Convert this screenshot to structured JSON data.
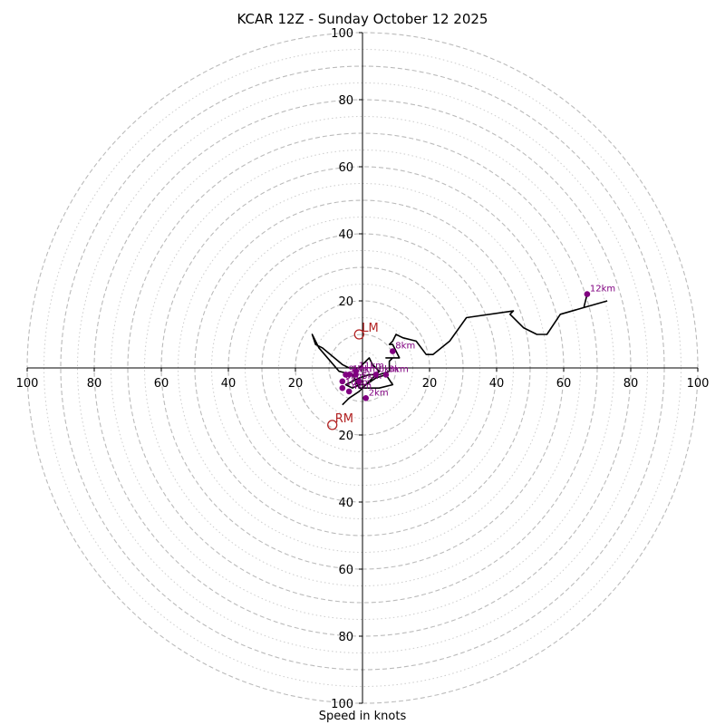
{
  "chart_data": {
    "type": "hodograph",
    "title": "KCAR 12Z - Sunday October 12 2025",
    "xlabel": "Speed in knots",
    "range": [
      -100,
      100
    ],
    "rings_major": [
      10,
      20,
      30,
      40,
      50,
      60,
      70,
      80,
      90,
      100
    ],
    "rings_minor": [
      5,
      15,
      25,
      35,
      45,
      55,
      65,
      75,
      85,
      95
    ],
    "x_tick_labels": [
      "100",
      "80",
      "60",
      "40",
      "20",
      "20",
      "40",
      "60",
      "80",
      "100"
    ],
    "x_tick_values": [
      -100,
      -80,
      -60,
      -40,
      -20,
      20,
      40,
      60,
      80,
      100
    ],
    "y_tick_labels": [
      "100",
      "80",
      "60",
      "40",
      "20",
      "20",
      "40",
      "60",
      "80",
      "100"
    ],
    "y_tick_values": [
      100,
      80,
      60,
      40,
      20,
      -20,
      -40,
      -60,
      -80,
      -100
    ],
    "trace": [
      [
        -6,
        -11
      ],
      [
        -4,
        -9
      ],
      [
        -1,
        -7
      ],
      [
        1,
        -5
      ],
      [
        3,
        -3
      ],
      [
        5,
        -1
      ],
      [
        3,
        1
      ],
      [
        2,
        3
      ],
      [
        1,
        2
      ],
      [
        -1,
        0
      ],
      [
        -4,
        0
      ],
      [
        -6,
        1
      ],
      [
        -12,
        6
      ],
      [
        -14,
        7
      ],
      [
        -15,
        10
      ],
      [
        -13,
        6
      ],
      [
        -7,
        -1
      ],
      [
        -3,
        -2
      ],
      [
        -1,
        -6
      ],
      [
        1,
        -6
      ],
      [
        5,
        -6
      ],
      [
        9,
        -5
      ],
      [
        7,
        -2
      ],
      [
        4,
        -3
      ],
      [
        1,
        -5
      ],
      [
        -1,
        -5
      ],
      [
        -3,
        -6
      ],
      [
        -5,
        -5
      ],
      [
        -3,
        -4
      ],
      [
        -1,
        -3
      ],
      [
        2,
        -2
      ],
      [
        5,
        -2
      ],
      [
        8,
        -1
      ],
      [
        8,
        2
      ],
      [
        9,
        3
      ],
      [
        7,
        3
      ],
      [
        11,
        3
      ],
      [
        9,
        7
      ],
      [
        8,
        7
      ],
      [
        9,
        8
      ],
      [
        10,
        10
      ],
      [
        12,
        9
      ],
      [
        16,
        8
      ],
      [
        19,
        4
      ],
      [
        21,
        4
      ],
      [
        26,
        8
      ],
      [
        31,
        15
      ],
      [
        45,
        17
      ],
      [
        44,
        16
      ],
      [
        48,
        12
      ],
      [
        52,
        10
      ],
      [
        55,
        10
      ],
      [
        59,
        16
      ],
      [
        66,
        18
      ],
      [
        67,
        22
      ],
      [
        66,
        18
      ],
      [
        73,
        20
      ]
    ],
    "height_markers": [
      {
        "label": "0km",
        "u": -6,
        "v": -4
      },
      {
        "label": "1km",
        "u": -4,
        "v": -2
      },
      {
        "label": "2km",
        "u": 1,
        "v": -9
      },
      {
        "label": "3km",
        "u": 7,
        "v": -2
      },
      {
        "label": "4km",
        "u": -4,
        "v": -7
      },
      {
        "label": "5km",
        "u": -1,
        "v": -4
      },
      {
        "label": "6km",
        "u": 4,
        "v": -2
      },
      {
        "label": "7km",
        "u": -2,
        "v": -2
      },
      {
        "label": "8km",
        "u": 9,
        "v": 5
      },
      {
        "label": "9km",
        "u": -5,
        "v": -2
      },
      {
        "label": "10km",
        "u": -6,
        "v": -6
      },
      {
        "label": "11km",
        "u": -2,
        "v": -1
      },
      {
        "label": "12km",
        "u": 67,
        "v": 22
      }
    ],
    "storm_motion": [
      {
        "label": "LM",
        "u": -1,
        "v": 10
      },
      {
        "label": "RM",
        "u": -9,
        "v": -17
      }
    ],
    "colors": {
      "trace": "#000000",
      "markers": "#800080",
      "storm_motion": "#b22222",
      "ring_major": "#bbbbbb",
      "ring_minor": "#cccccc",
      "axis": "#000000"
    }
  }
}
